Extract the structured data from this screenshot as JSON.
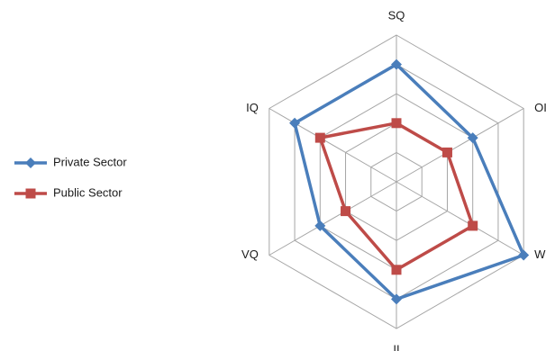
{
  "chart_data": {
    "type": "radar",
    "categories": [
      "SQ",
      "OI",
      "W",
      "II",
      "VQ",
      "IQ"
    ],
    "rmax": 5,
    "grid_levels": 5,
    "grid": true,
    "legend_placement": "left",
    "series": [
      {
        "name": "Private Sector",
        "values": [
          4,
          3,
          5,
          4,
          3,
          4
        ],
        "color": "#4a7ebb",
        "marker": "diamond"
      },
      {
        "name": "Public Sector",
        "values": [
          2,
          2,
          3,
          3,
          2,
          3
        ],
        "color": "#be4b48",
        "marker": "square"
      }
    ]
  }
}
